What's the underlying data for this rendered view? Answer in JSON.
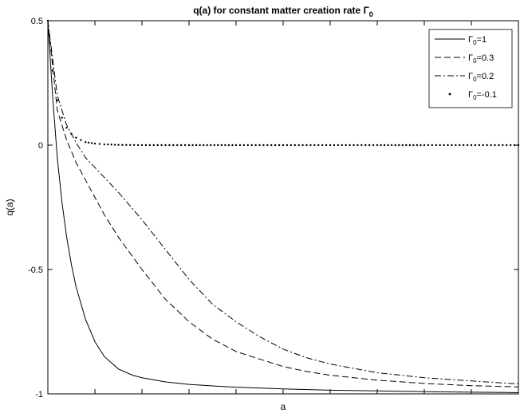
{
  "chart_data": {
    "type": "line",
    "title": "q(a) for constant matter creation rate Γ",
    "title_subscript": "0",
    "xlabel": "a",
    "ylabel": "q(a)",
    "ylim": [
      -1,
      0.5
    ],
    "y_ticks": [
      {
        "value": 0.5,
        "label": "0.5"
      },
      {
        "value": 0,
        "label": "0"
      },
      {
        "value": -0.5,
        "label": "-0.5"
      },
      {
        "value": -1,
        "label": "-1"
      }
    ],
    "x_ticks_count": 10,
    "grid": false,
    "legend_position": "top-right",
    "series": [
      {
        "legend_symbol": "Γ",
        "legend_subscript": "0",
        "legend_value": "=1",
        "style": "solid",
        "x": [
          0,
          0.01,
          0.02,
          0.03,
          0.04,
          0.05,
          0.06,
          0.08,
          0.1,
          0.12,
          0.15,
          0.18,
          0.2,
          0.25,
          0.3,
          0.35,
          0.4,
          0.5,
          0.6,
          0.7,
          0.8,
          0.9,
          1.0
        ],
        "y": [
          0.5,
          0.2,
          -0.05,
          -0.23,
          -0.37,
          -0.48,
          -0.57,
          -0.7,
          -0.79,
          -0.85,
          -0.9,
          -0.925,
          -0.935,
          -0.952,
          -0.962,
          -0.968,
          -0.973,
          -0.98,
          -0.985,
          -0.988,
          -0.991,
          -0.993,
          -0.995
        ]
      },
      {
        "legend_symbol": "Γ",
        "legend_subscript": "0",
        "legend_value": "=0.3",
        "style": "dashed",
        "x": [
          0,
          0.02,
          0.04,
          0.06,
          0.08,
          0.1,
          0.12,
          0.15,
          0.2,
          0.25,
          0.3,
          0.35,
          0.4,
          0.45,
          0.5,
          0.55,
          0.6,
          0.7,
          0.8,
          0.9,
          1.0
        ],
        "y": [
          0.5,
          0.14,
          0.02,
          -0.07,
          -0.14,
          -0.21,
          -0.28,
          -0.37,
          -0.5,
          -0.62,
          -0.71,
          -0.78,
          -0.83,
          -0.86,
          -0.89,
          -0.91,
          -0.925,
          -0.945,
          -0.958,
          -0.967,
          -0.972
        ]
      },
      {
        "legend_symbol": "Γ",
        "legend_subscript": "0",
        "legend_value": "=0.2",
        "style": "dashdot",
        "x": [
          0,
          0.02,
          0.04,
          0.06,
          0.08,
          0.1,
          0.12,
          0.15,
          0.2,
          0.25,
          0.3,
          0.35,
          0.4,
          0.45,
          0.5,
          0.55,
          0.6,
          0.7,
          0.8,
          0.9,
          1.0
        ],
        "y": [
          0.5,
          0.2,
          0.08,
          0.01,
          -0.05,
          -0.09,
          -0.13,
          -0.19,
          -0.3,
          -0.42,
          -0.54,
          -0.64,
          -0.71,
          -0.77,
          -0.82,
          -0.855,
          -0.88,
          -0.915,
          -0.935,
          -0.948,
          -0.96
        ]
      },
      {
        "legend_symbol": "Γ",
        "legend_subscript": "0",
        "legend_value": "=-0.1",
        "style": "dotted",
        "x": [
          0,
          0.01,
          0.02,
          0.03,
          0.04,
          0.05,
          0.06,
          0.07,
          0.08,
          0.1,
          0.12,
          0.15,
          0.2,
          0.25,
          0.3,
          0.4,
          0.5,
          0.6,
          0.7,
          0.8,
          0.9,
          1.0
        ],
        "y": [
          0.5,
          0.3,
          0.18,
          0.11,
          0.07,
          0.045,
          0.03,
          0.02,
          0.012,
          0.006,
          0.003,
          0.001,
          0,
          0,
          0,
          0,
          0,
          0,
          0,
          0,
          0,
          0
        ]
      }
    ]
  }
}
